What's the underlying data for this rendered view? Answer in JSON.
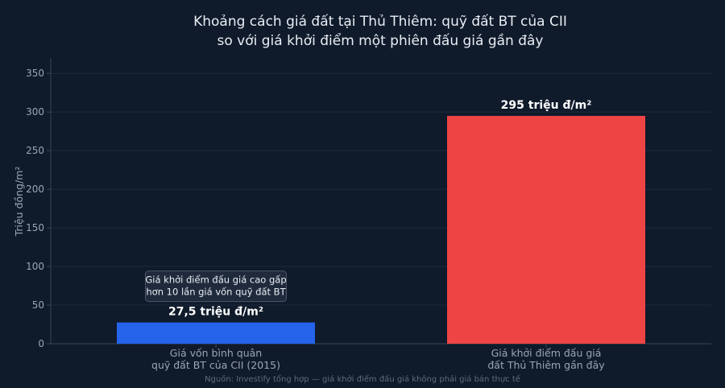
{
  "chart_data": {
    "type": "bar",
    "title_lines": [
      "Khoảng cách giá đất tại Thủ Thiêm: quỹ đất BT của CII",
      "so với giá khởi điểm một phiên đấu giá gần đây"
    ],
    "ylabel": "Triệu đồng/m²",
    "xlabel": "",
    "ylim": [
      0,
      370
    ],
    "yticks": [
      0,
      50,
      100,
      150,
      200,
      250,
      300,
      350
    ],
    "grid": true,
    "categories": [
      [
        "Giá vốn bình quân",
        "quỹ đất BT của CII (2015)"
      ],
      [
        "Giá khởi điểm đấu giá",
        "đất Thủ Thiêm gần đây"
      ]
    ],
    "values": [
      27.5,
      295
    ],
    "data_labels": [
      "27,5 triệu đ/m²",
      "295 triệu đ/m²"
    ],
    "bar_colors": [
      "#2563eb",
      "#ef4444"
    ],
    "annotation": {
      "lines": [
        "Giá khởi điểm đấu giá cao gấp",
        "hơn 10 lần giá vốn quỹ đất BT"
      ],
      "bar_index": 0
    },
    "source": "Nguồn: Investify tổng hợp — giá khởi điểm đấu giá không phải giá bán thực tế"
  },
  "colors": {
    "background": "#0f1a2b",
    "grid": "#1e2a3c",
    "axis": "#3a4658",
    "annotation_box": "#1f2b3d",
    "annotation_border": "#4a5568"
  }
}
